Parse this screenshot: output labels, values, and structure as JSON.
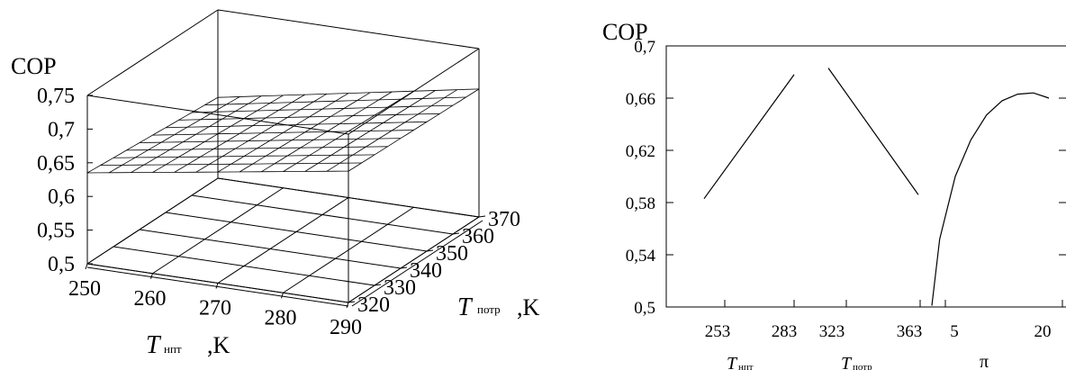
{
  "chart_data": [
    {
      "type": "surface3d",
      "zlabel": "COP",
      "x_axis": {
        "label_main": "T",
        "label_sub": "нпт",
        "label_unit": ",K",
        "ticks": [
          "250",
          "260",
          "270",
          "280",
          "290"
        ]
      },
      "y_axis": {
        "label_main": "T",
        "label_sub": "потр",
        "label_unit": ",K",
        "ticks": [
          "320",
          "330",
          "340",
          "350",
          "360",
          "370"
        ]
      },
      "z_axis": {
        "ticks": [
          "0,5",
          "0,55",
          "0,6",
          "0,65",
          "0,7",
          "0,75"
        ]
      },
      "xlim": [
        250,
        290
      ],
      "ylim": [
        320,
        370
      ],
      "zlim": [
        0.5,
        0.75
      ],
      "surface_corners": [
        {
          "x": 250,
          "y": 320,
          "z": 0.635
        },
        {
          "x": 290,
          "y": 320,
          "z": 0.695
        },
        {
          "x": 250,
          "y": 370,
          "z": 0.62
        },
        {
          "x": 290,
          "y": 370,
          "z": 0.69
        }
      ],
      "grid": true
    },
    {
      "type": "line",
      "ylabel": "COP",
      "ylim": [
        0.5,
        0.7
      ],
      "y_ticks": [
        "0,5",
        "0,54",
        "0,58",
        "0,62",
        "0,66",
        "0,7"
      ],
      "x_ticks": [
        "253",
        "283",
        "323",
        "363",
        "5",
        "20"
      ],
      "x_labels": [
        {
          "main": "T",
          "sub": "нпт"
        },
        {
          "main": "T",
          "sub": "потр"
        },
        {
          "main": "π",
          "sub": ""
        }
      ],
      "series": [
        {
          "x": [
            253,
            283
          ],
          "y": [
            0.583,
            0.678
          ]
        },
        {
          "x": [
            323,
            363
          ],
          "y": [
            0.683,
            0.586
          ]
        },
        {
          "x": [
            5,
            6,
            8,
            10,
            12,
            14,
            16,
            18,
            19.5,
            20
          ],
          "y": [
            0.501,
            0.552,
            0.6,
            0.628,
            0.647,
            0.658,
            0.663,
            0.664,
            0.661,
            0.66
          ]
        }
      ]
    }
  ]
}
